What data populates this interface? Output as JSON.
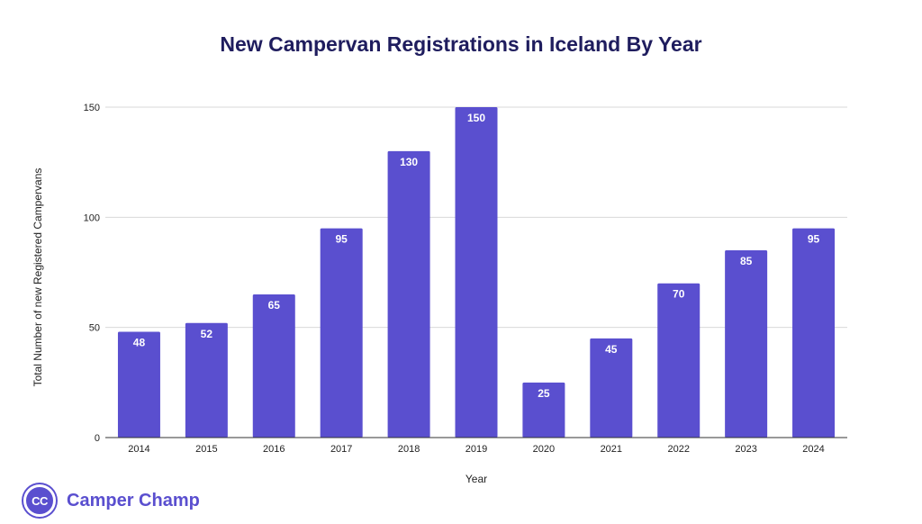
{
  "chart_data": {
    "type": "bar",
    "title": "New Campervan Registrations in Iceland By Year",
    "xlabel": "Year",
    "ylabel": "Total Number of new Registered Campervans",
    "categories": [
      "2014",
      "2015",
      "2016",
      "2017",
      "2018",
      "2019",
      "2020",
      "2021",
      "2022",
      "2023",
      "2024"
    ],
    "values": [
      48,
      52,
      65,
      95,
      130,
      150,
      25,
      45,
      70,
      85,
      95
    ],
    "data_labels": [
      "48",
      "52",
      "65",
      "95",
      "130",
      "150",
      "25",
      "45",
      "70",
      "85",
      "95"
    ],
    "ylim": [
      0,
      150
    ],
    "yticks": [
      0,
      50,
      100,
      150
    ],
    "ytick_labels": [
      "0",
      "50",
      "100",
      "150"
    ],
    "grid": true,
    "legend": "none",
    "bar_color": "#5a4fcf"
  },
  "brand": {
    "logo_text": "CC",
    "name": "Camper Champ"
  },
  "colors": {
    "title": "#1f1d5e",
    "bar": "#5a4fcf",
    "brand": "#5a4fcf",
    "grid": "#d9d9d9",
    "axis_text": "#222222"
  }
}
